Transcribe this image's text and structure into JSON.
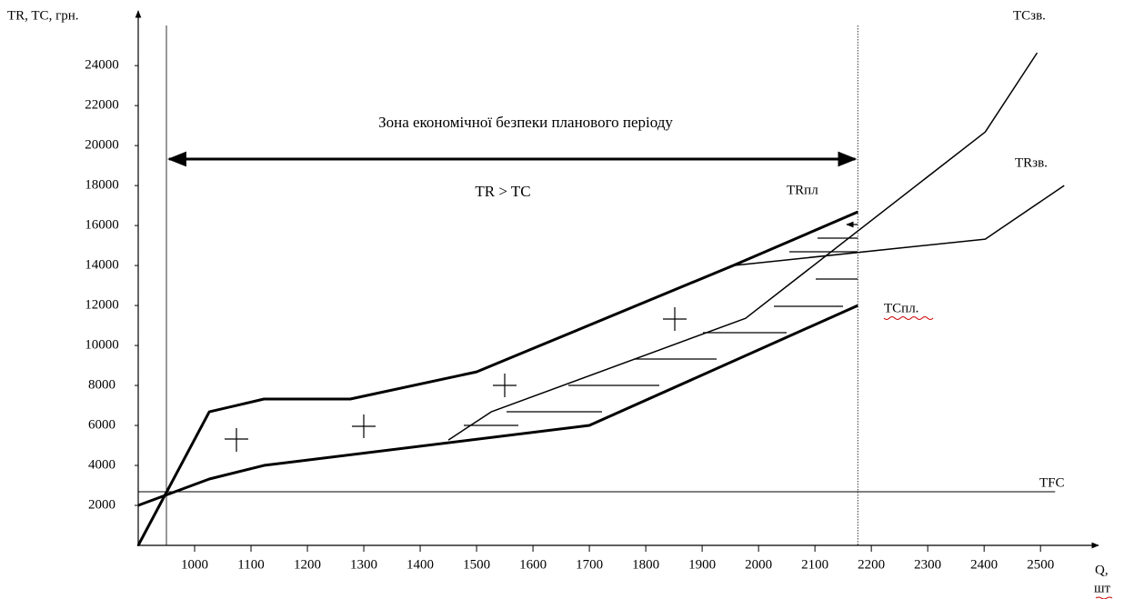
{
  "chart_data": {
    "type": "line",
    "ylabel": "TR, TC, грн.",
    "xlabel": [
      "Q,",
      "шт"
    ],
    "xlim": [
      900,
      2590
    ],
    "ylim": [
      0,
      26600
    ],
    "xticks": [
      1000,
      1100,
      1200,
      1300,
      1400,
      1500,
      1600,
      1700,
      1800,
      1900,
      2000,
      2100,
      2200,
      2300,
      2400,
      2500
    ],
    "yticks": [
      2000,
      4000,
      6000,
      8000,
      10000,
      12000,
      14000,
      16000,
      18000,
      20000,
      22000,
      24000
    ],
    "markers_x": [
      950,
      2176
    ],
    "annotations": [
      "Зона економічної безпеки планового періоду",
      "TR > TC"
    ],
    "series": [
      {
        "name": "TRпл",
        "color": "#000000",
        "width": 3,
        "x": [
          900,
          1026,
          1123,
          1276,
          1500,
          1955,
          2176
        ],
        "values": [
          0,
          6680,
          7320,
          7320,
          8680,
          14000,
          16680
        ]
      },
      {
        "name": "TCпл.",
        "color": "#000000",
        "width": 3,
        "x": [
          900,
          1026,
          1123,
          1700,
          2176
        ],
        "values": [
          2000,
          3320,
          4000,
          6000,
          12000
        ]
      },
      {
        "name": "TCзв.",
        "color": "#000000",
        "width": 1.5,
        "x": [
          1450,
          1526,
          1977,
          2402,
          2494
        ],
        "values": [
          5270,
          6680,
          11360,
          20680,
          24640
        ]
      },
      {
        "name": "TRзв.",
        "color": "#000000",
        "width": 1.5,
        "x": [
          1955,
          2402,
          2542
        ],
        "values": [
          14000,
          15320,
          18000
        ]
      },
      {
        "name": "TFC",
        "color": "#000000",
        "width": 1,
        "x": [
          900,
          2526
        ],
        "values": [
          2680,
          2680
        ]
      }
    ]
  }
}
